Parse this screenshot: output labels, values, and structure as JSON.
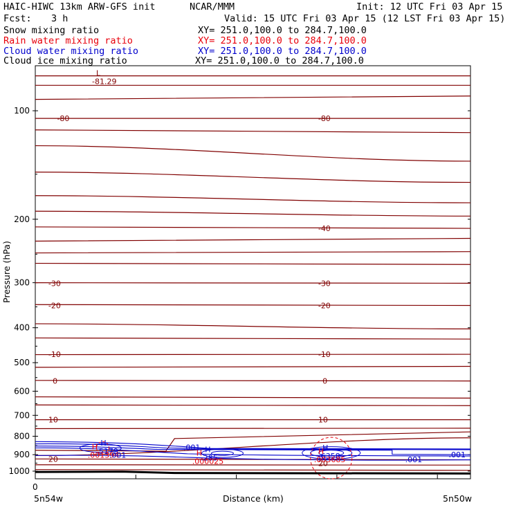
{
  "header": {
    "model": "HAIC-HIWC 13km ARW-GFS init",
    "org": "NCAR/MMM",
    "init": "Init: 12 UTC Fri 03 Apr 15",
    "fcst_label": "Fcst:",
    "fcst_value": "3 h",
    "valid": "Valid: 15 UTC Fri 03 Apr 15 (12 LST Fri 03 Apr 15)"
  },
  "legend": [
    {
      "name": "Snow mixing ratio",
      "xy": "XY= 251.0,100.0 to 284.7,100.0",
      "color": "#000000"
    },
    {
      "name": "Rain water mixing ratio",
      "xy": "XY= 251.0,100.0 to 284.7,100.0",
      "color": "#e8000b"
    },
    {
      "name": "Cloud water mixing ratio",
      "xy": "XY= 251.0,100.0 to 284.7,100.0",
      "color": "#0000cc"
    },
    {
      "name": "Cloud ice mixing ratio",
      "xy": "XY= 251.0,100.0 to 284.7,100.0",
      "color": "#000000"
    }
  ],
  "chart_data": {
    "type": "line",
    "title": "",
    "xlabel": "Distance (km)",
    "ylabel": "Pressure (hPa)",
    "x_tick_labels": [
      "0"
    ],
    "x_end_labels": [
      "5n54w",
      "5n50w"
    ],
    "y_scale": "log",
    "ylim": [
      1050,
      75
    ],
    "y_ticks": [
      100,
      200,
      300,
      400,
      500,
      600,
      700,
      800,
      900,
      1000
    ],
    "x_minor_ticks": [
      0,
      0.231,
      0.462,
      0.693,
      0.924
    ],
    "colors": {
      "isotherm": "#800000",
      "cloud_water": "#0000cc",
      "rain_water": "#e8000b",
      "ground": "#000000"
    },
    "isotherms": [
      {
        "p": [
          80,
          80
        ],
        "label": ""
      },
      {
        "p": [
          85,
          85
        ],
        "label": ""
      },
      {
        "p": [
          93,
          91
        ],
        "label": ""
      },
      {
        "p": [
          105,
          105
        ],
        "label": "-80"
      },
      {
        "p": [
          113,
          115
        ],
        "label": ""
      },
      {
        "p": [
          125,
          138
        ],
        "label": ""
      },
      {
        "p": [
          148,
          158
        ],
        "label": ""
      },
      {
        "p": [
          172,
          180
        ],
        "label": ""
      },
      {
        "p": [
          190,
          196
        ],
        "label": ""
      },
      {
        "p": [
          210,
          212
        ],
        "label": "-40"
      },
      {
        "p": [
          230,
          226
        ],
        "label": ""
      },
      {
        "p": [
          248,
          246
        ],
        "label": ""
      },
      {
        "p": [
          265,
          267
        ],
        "label": ""
      },
      {
        "p": [
          300,
          301
        ],
        "label": "-30"
      },
      {
        "p": [
          345,
          347
        ],
        "label": "-20"
      },
      {
        "p": [
          390,
          403
        ],
        "label": ""
      },
      {
        "p": [
          427,
          430
        ],
        "label": ""
      },
      {
        "p": [
          475,
          474
        ],
        "label": "-10"
      },
      {
        "p": [
          515,
          512
        ],
        "label": ""
      },
      {
        "p": [
          560,
          562
        ],
        "label": "0"
      },
      {
        "p": [
          622,
          627
        ],
        "label": ""
      },
      {
        "p": [
          655,
          658
        ],
        "label": ""
      },
      {
        "p": [
          720,
          720
        ],
        "label": "10"
      },
      {
        "p": [
          762,
          760
        ],
        "label": ""
      },
      {
        "p": [
          905,
          808
        ],
        "label": ""
      },
      {
        "p": [
          925,
          930
        ],
        "label": "20"
      },
      {
        "p": [
          960,
          962
        ],
        "label": ""
      },
      {
        "p": [
          990,
          995
        ],
        "label": ""
      }
    ],
    "cloud_water_contours": [
      {
        "p": [
          830,
          840
        ],
        "label": ".001"
      },
      {
        "p": [
          850,
          862
        ],
        "label": ""
      },
      {
        "p": [
          868,
          878
        ],
        "label": ""
      },
      {
        "p": [
          900,
          905
        ],
        "label": ".001"
      },
      {
        "p": [
          920,
          930
        ],
        "label": ".001"
      }
    ],
    "rain_water_contours": [
      {
        "p": [
          868,
          880
        ],
        "label": ""
      }
    ],
    "ground_pressure": [
      1005,
      1015
    ],
    "highs_lows": [
      {
        "kind": "L",
        "value": "-81.29",
        "color": "#800000"
      },
      {
        "kind": "H",
        "value": ".5179",
        "color": "#0000cc"
      },
      {
        "kind": "H",
        "value": ".001394",
        "color": "#e8000b"
      },
      {
        "kind": "H",
        "value": ".285",
        "color": "#0000cc"
      },
      {
        "kind": "H",
        "value": ".000025",
        "color": "#e8000b"
      },
      {
        "kind": "H",
        "value": ".6358",
        "color": "#0000cc"
      },
      {
        "kind": "H",
        "value": ".003685",
        "color": "#e8000b"
      }
    ],
    "cloud_labels": [
      ".001",
      ".001",
      ".001",
      ".001"
    ],
    "extra_labels": [
      "-80",
      "-80",
      "-30",
      "-30",
      "-20",
      "-20",
      "-10",
      "-10",
      "0",
      "0",
      "10",
      "10",
      "20",
      "20",
      "-40"
    ]
  }
}
